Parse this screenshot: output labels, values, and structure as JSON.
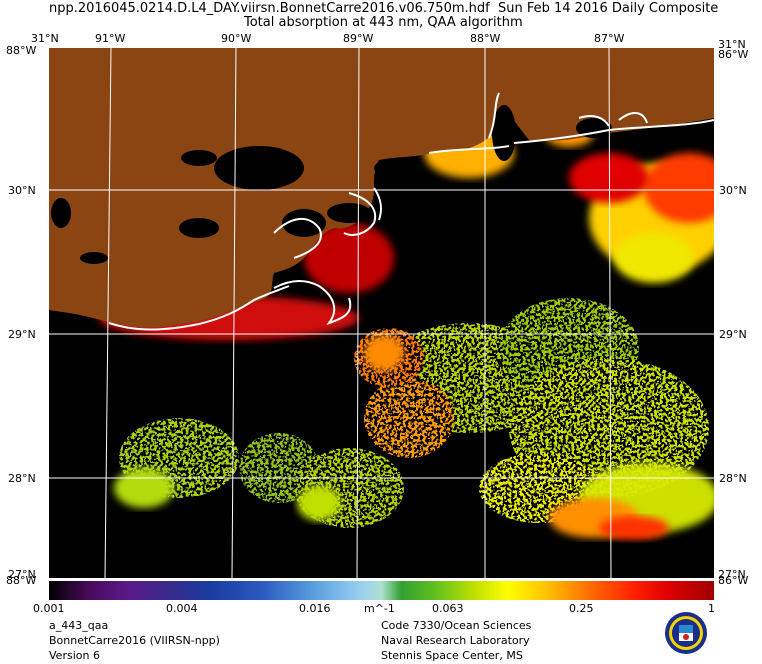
{
  "header": {
    "filename": "npp.2016045.0214.D.L4_DAY.viirsn.BonnetCarre2016.v06.750m.hdf",
    "date": "Sun Feb 14 2016 Daily Composite",
    "subtitle": "Total absorption at 443 nm, QAA algorithm"
  },
  "axes": {
    "top_left": "31°N",
    "top_right": "31°N",
    "corner_w_tl": "88°W",
    "corner_w_tr": "86°W",
    "corner_w_bl": "88°W",
    "corner_w_br": "86°W",
    "bottom_left": "27°N",
    "bottom_right": "27°N",
    "lon_labels": [
      "91°W",
      "90°W",
      "89°W",
      "88°W",
      "87°W"
    ],
    "lat_labels": [
      "30°N",
      "29°N",
      "28°N"
    ]
  },
  "colorbar": {
    "ticks": [
      "0.001",
      "0.004",
      "0.016",
      "0.063",
      "0.25",
      "1"
    ],
    "unit": "m^-1"
  },
  "footer": {
    "left": [
      "a_443_qaa",
      "BonnetCarre2016 (VIIRSN-npp)",
      "Version 6"
    ],
    "right": [
      "Code 7330/Ocean Sciences",
      "Naval Research Laboratory",
      "Stennis Space Center, MS"
    ]
  },
  "colors": {
    "land": "#8b4513",
    "ocean_nodata": "#000000",
    "grid": "#ffffff",
    "coastline": "#ffffff"
  }
}
